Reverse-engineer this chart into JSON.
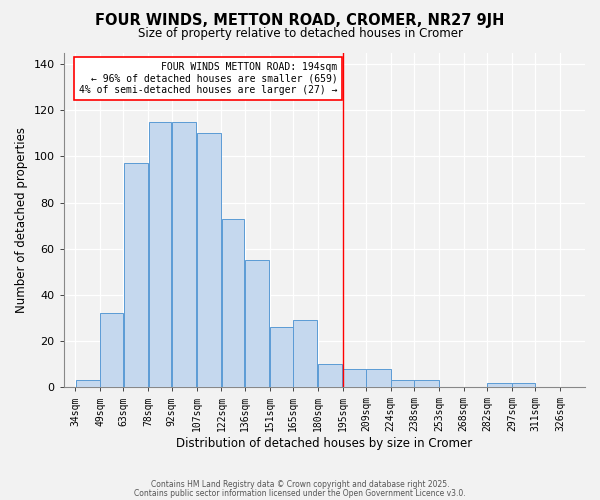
{
  "title": "FOUR WINDS, METTON ROAD, CROMER, NR27 9JH",
  "subtitle": "Size of property relative to detached houses in Cromer",
  "xlabel": "Distribution of detached houses by size in Cromer",
  "ylabel": "Number of detached properties",
  "bar_left_edges": [
    34,
    49,
    63,
    78,
    92,
    107,
    122,
    136,
    151,
    165,
    180,
    195,
    209,
    224,
    238,
    253,
    268,
    282,
    297,
    311
  ],
  "bar_widths": [
    15,
    14,
    15,
    14,
    15,
    15,
    14,
    15,
    14,
    15,
    15,
    14,
    15,
    14,
    15,
    15,
    14,
    15,
    14,
    15
  ],
  "bar_heights": [
    3,
    32,
    97,
    115,
    115,
    110,
    73,
    55,
    26,
    29,
    10,
    8,
    8,
    3,
    3,
    0,
    0,
    2,
    2,
    0
  ],
  "tick_labels": [
    "34sqm",
    "49sqm",
    "63sqm",
    "78sqm",
    "92sqm",
    "107sqm",
    "122sqm",
    "136sqm",
    "151sqm",
    "165sqm",
    "180sqm",
    "195sqm",
    "209sqm",
    "224sqm",
    "238sqm",
    "253sqm",
    "268sqm",
    "282sqm",
    "297sqm",
    "311sqm",
    "326sqm"
  ],
  "tick_positions": [
    34,
    49,
    63,
    78,
    92,
    107,
    122,
    136,
    151,
    165,
    180,
    195,
    209,
    224,
    238,
    253,
    268,
    282,
    297,
    311,
    326
  ],
  "bar_color": "#c5d8ee",
  "bar_edge_color": "#5b9bd5",
  "background_color": "#f2f2f2",
  "red_line_x": 195,
  "annotation_text": "FOUR WINDS METTON ROAD: 194sqm\n← 96% of detached houses are smaller (659)\n4% of semi-detached houses are larger (27) →",
  "ylim": [
    0,
    145
  ],
  "xlim": [
    27,
    341
  ],
  "footer_line1": "Contains HM Land Registry data © Crown copyright and database right 2025.",
  "footer_line2": "Contains public sector information licensed under the Open Government Licence v3.0."
}
